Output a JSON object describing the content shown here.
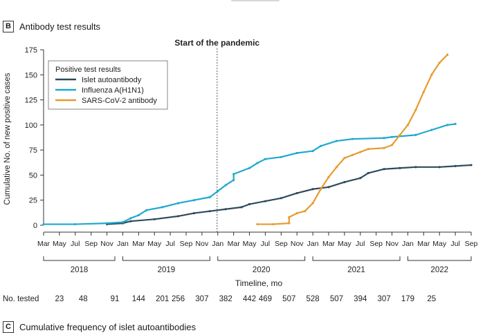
{
  "panel": {
    "letter": "B",
    "title": "Antibody test results"
  },
  "next_panel": {
    "letter": "C",
    "title": "Cumulative frequency of islet autoantibodies"
  },
  "chart_data": {
    "type": "line",
    "title": "",
    "annotation": "Start of the pandemic",
    "annotation_x": "2020-01",
    "xlabel": "Timeline, mo",
    "ylabel": "Cumulative No. of new positive cases",
    "ylim": [
      0,
      175
    ],
    "yticks": [
      0,
      25,
      50,
      75,
      100,
      125,
      150,
      175
    ],
    "xlim": [
      "2018-03",
      "2022-09"
    ],
    "x_tick_labels": [
      "Mar",
      "May",
      "Jul",
      "Sep",
      "Nov",
      "Jan",
      "Mar",
      "May",
      "Jul",
      "Sep",
      "Nov",
      "Jan",
      "Mar",
      "May",
      "Jul",
      "Sep",
      "Nov",
      "Jan",
      "Mar",
      "May",
      "Jul",
      "Sep",
      "Nov",
      "Jan",
      "Mar",
      "May",
      "Jul",
      "Sep"
    ],
    "x_ticks": [
      "2018-03",
      "2018-05",
      "2018-07",
      "2018-09",
      "2018-11",
      "2019-01",
      "2019-03",
      "2019-05",
      "2019-07",
      "2019-09",
      "2019-11",
      "2020-01",
      "2020-03",
      "2020-05",
      "2020-07",
      "2020-09",
      "2020-11",
      "2021-01",
      "2021-03",
      "2021-05",
      "2021-07",
      "2021-09",
      "2021-11",
      "2022-01",
      "2022-03",
      "2022-05",
      "2022-07",
      "2022-09"
    ],
    "years": [
      {
        "label": "2018",
        "start": "2018-03",
        "end": "2018-12"
      },
      {
        "label": "2019",
        "start": "2019-01",
        "end": "2019-12"
      },
      {
        "label": "2020",
        "start": "2020-01",
        "end": "2020-12"
      },
      {
        "label": "2021",
        "start": "2021-01",
        "end": "2021-12"
      },
      {
        "label": "2022",
        "start": "2022-01",
        "end": "2022-09"
      }
    ],
    "legend": {
      "title": "Positive test results",
      "placement": "top-left"
    },
    "grid": false,
    "series": [
      {
        "name": "Islet autoantibody",
        "color": "#2e4a5c",
        "points": [
          [
            "2018-11",
            1
          ],
          [
            "2019-01",
            2
          ],
          [
            "2019-02",
            4
          ],
          [
            "2019-05",
            6
          ],
          [
            "2019-08",
            9
          ],
          [
            "2019-10",
            12
          ],
          [
            "2019-12",
            14
          ],
          [
            "2020-02",
            16
          ],
          [
            "2020-04",
            18
          ],
          [
            "2020-05",
            21
          ],
          [
            "2020-07",
            24
          ],
          [
            "2020-09",
            27
          ],
          [
            "2020-11",
            32
          ],
          [
            "2021-01",
            36
          ],
          [
            "2021-03",
            38
          ],
          [
            "2021-05",
            43
          ],
          [
            "2021-07",
            47
          ],
          [
            "2021-08",
            52
          ],
          [
            "2021-10",
            56
          ],
          [
            "2021-12",
            57
          ],
          [
            "2022-02",
            58
          ],
          [
            "2022-05",
            58
          ],
          [
            "2022-07",
            59
          ],
          [
            "2022-09",
            60
          ]
        ]
      },
      {
        "name": "Influenza A(H1N1)",
        "color": "#1fa8cf",
        "points": [
          [
            "2018-03",
            1
          ],
          [
            "2018-07",
            1
          ],
          [
            "2018-11",
            2
          ],
          [
            "2019-01",
            3
          ],
          [
            "2019-02",
            7
          ],
          [
            "2019-03",
            10
          ],
          [
            "2019-04",
            15
          ],
          [
            "2019-06",
            18
          ],
          [
            "2019-08",
            22
          ],
          [
            "2019-10",
            25
          ],
          [
            "2019-12",
            28
          ],
          [
            "2020-01",
            34
          ],
          [
            "2020-02",
            40
          ],
          [
            "2020-03",
            45
          ],
          [
            "2020-03",
            51
          ],
          [
            "2020-05",
            57
          ],
          [
            "2020-06",
            62
          ],
          [
            "2020-07",
            66
          ],
          [
            "2020-09",
            68
          ],
          [
            "2020-11",
            72
          ],
          [
            "2021-01",
            74
          ],
          [
            "2021-02",
            79
          ],
          [
            "2021-04",
            84
          ],
          [
            "2021-06",
            86
          ],
          [
            "2021-10",
            87
          ],
          [
            "2021-11",
            88
          ],
          [
            "2022-02",
            90
          ],
          [
            "2022-04",
            95
          ],
          [
            "2022-06",
            100
          ],
          [
            "2022-07",
            101
          ]
        ]
      },
      {
        "name": "SARS-CoV-2 antibody",
        "color": "#e89a2c",
        "points": [
          [
            "2020-06",
            1
          ],
          [
            "2020-08",
            1
          ],
          [
            "2020-10",
            2
          ],
          [
            "2020-10",
            8
          ],
          [
            "2020-11",
            12
          ],
          [
            "2020-12",
            14
          ],
          [
            "2021-01",
            22
          ],
          [
            "2021-02",
            36
          ],
          [
            "2021-03",
            48
          ],
          [
            "2021-04",
            58
          ],
          [
            "2021-05",
            67
          ],
          [
            "2021-06",
            70
          ],
          [
            "2021-07",
            73
          ],
          [
            "2021-08",
            76
          ],
          [
            "2021-10",
            77
          ],
          [
            "2021-11",
            80
          ],
          [
            "2021-12",
            90
          ],
          [
            "2022-01",
            100
          ],
          [
            "2022-02",
            115
          ],
          [
            "2022-03",
            133
          ],
          [
            "2022-04",
            150
          ],
          [
            "2022-05",
            162
          ],
          [
            "2022-06",
            170
          ]
        ]
      }
    ],
    "no_tested": {
      "label": "No. tested",
      "values": [
        {
          "x": "2018-05",
          "value": "23"
        },
        {
          "x": "2018-08",
          "value": "48"
        },
        {
          "x": "2018-12",
          "value": "91"
        },
        {
          "x": "2019-03",
          "value": "144"
        },
        {
          "x": "2019-06",
          "value": "201"
        },
        {
          "x": "2019-08",
          "value": "256"
        },
        {
          "x": "2019-11",
          "value": "307"
        },
        {
          "x": "2020-02",
          "value": "382"
        },
        {
          "x": "2020-05",
          "value": "442"
        },
        {
          "x": "2020-07",
          "value": "469"
        },
        {
          "x": "2020-10",
          "value": "507"
        },
        {
          "x": "2021-01",
          "value": "528"
        },
        {
          "x": "2021-04",
          "value": "507"
        },
        {
          "x": "2021-07",
          "value": "394"
        },
        {
          "x": "2021-10",
          "value": "307"
        },
        {
          "x": "2022-01",
          "value": "179"
        },
        {
          "x": "2022-04",
          "value": "25"
        }
      ]
    }
  }
}
